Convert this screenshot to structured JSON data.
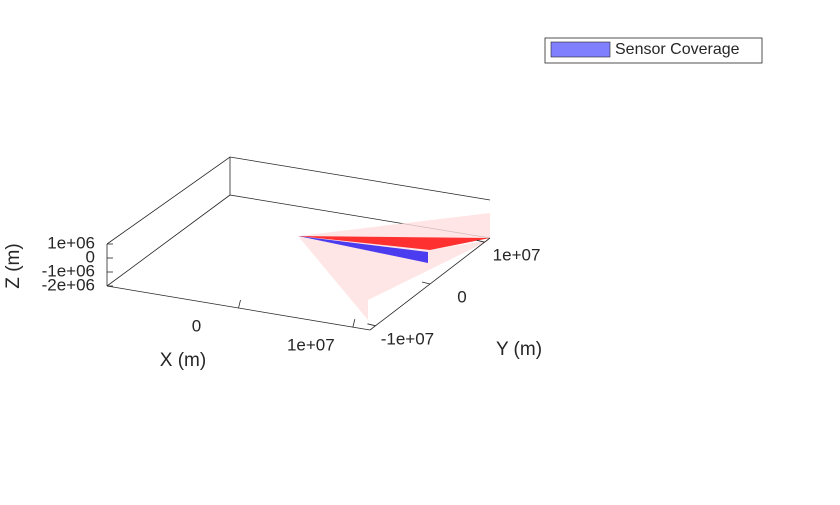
{
  "chart_data": {
    "type": "patch3d",
    "xlabel": "X (m)",
    "ylabel": "Y (m)",
    "zlabel": "Z (m)",
    "xlim": [
      -11500000,
      11500000
    ],
    "ylim": [
      -11000000,
      11000000
    ],
    "zlim": [
      -2000000,
      1000000
    ],
    "xticks": [
      0,
      {
        "value": 10000000,
        "label": "1e+07"
      }
    ],
    "yticks": [
      {
        "value": -10000000,
        "label": "-1e+07"
      },
      0,
      {
        "value": 10000000,
        "label": "1e+07"
      }
    ],
    "zticks": [
      {
        "value": -2000000,
        "label": "-2e+06"
      },
      {
        "value": -1000000,
        "label": "-1e+06"
      },
      0,
      {
        "value": 1000000,
        "label": "1e+06"
      }
    ],
    "series": [
      {
        "name": "Sensor Coverage",
        "color": "#8080ff"
      }
    ],
    "legend": "northeast"
  }
}
